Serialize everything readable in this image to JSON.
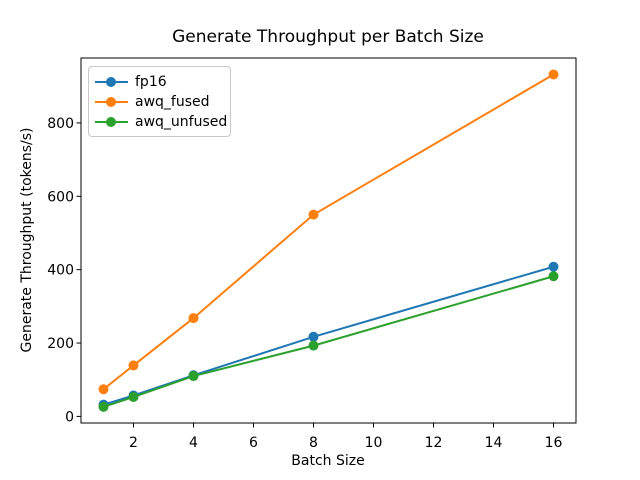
{
  "figure": {
    "background": "#ffffff"
  },
  "chart_data": {
    "type": "line",
    "title": "Generate Throughput per Batch Size",
    "xlabel": "Batch Size",
    "ylabel": "Generate Throughput (tokens/s)",
    "x": [
      1,
      2,
      4,
      8,
      16
    ],
    "series": [
      {
        "name": "fp16",
        "color": "#1f77b4",
        "values": [
          32,
          57,
          112,
          217,
          408
        ]
      },
      {
        "name": "awq_fused",
        "color": "#ff7f0e",
        "values": [
          74,
          139,
          268,
          550,
          932
        ]
      },
      {
        "name": "awq_unfused",
        "color": "#2ca02c",
        "values": [
          26,
          53,
          110,
          193,
          382
        ]
      }
    ],
    "xticks": [
      2,
      4,
      6,
      8,
      10,
      12,
      14,
      16
    ],
    "yticks": [
      0,
      200,
      400,
      600,
      800
    ],
    "xlim": [
      0.25,
      16.75
    ],
    "ylim": [
      -18,
      977
    ],
    "grid": false,
    "legend_position": "upper left",
    "marker": "circle",
    "axis_color": "#000000",
    "tick_font_px": 14
  }
}
